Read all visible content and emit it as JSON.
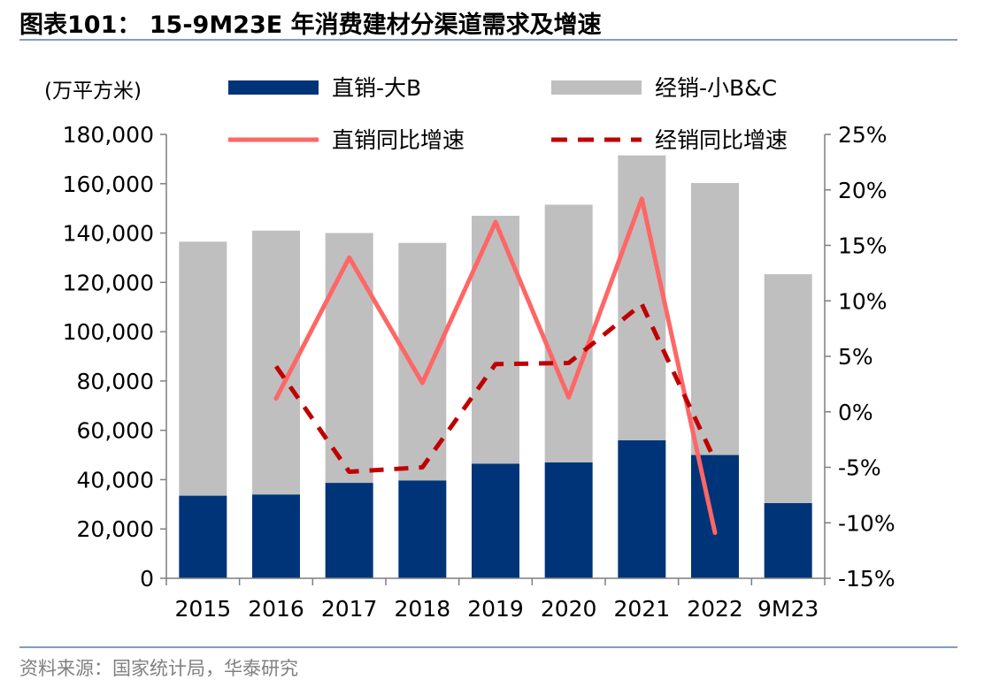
{
  "figure": {
    "title": "图表101： 15-9M23E 年消费建材分渠道需求及增速",
    "source": "资料来源：国家统计局，华泰研究"
  },
  "chart_data": {
    "type": "bar",
    "stacked": true,
    "unit_label": "(万平方米)",
    "categories": [
      "2015",
      "2016",
      "2017",
      "2018",
      "2019",
      "2020",
      "2021",
      "2022",
      "9M23"
    ],
    "series": [
      {
        "name": "直销-大B",
        "kind": "bar",
        "axis": "left",
        "color": "#003478",
        "values": [
          33500,
          34000,
          38700,
          39700,
          46500,
          47000,
          56000,
          50000,
          30500
        ]
      },
      {
        "name": "经销-小B&C",
        "kind": "bar",
        "axis": "left",
        "color": "#bfbfbf",
        "values": [
          103000,
          107000,
          101300,
          96300,
          100500,
          104500,
          115500,
          110300,
          92800
        ]
      },
      {
        "name": "直销同比增速",
        "kind": "line",
        "axis": "right",
        "color": "#ff6666",
        "dash": "solid",
        "values": [
          null,
          1.2,
          13.9,
          2.6,
          17.1,
          1.3,
          19.2,
          -10.9,
          null
        ]
      },
      {
        "name": "经销同比增速",
        "kind": "line",
        "axis": "right",
        "color": "#c00000",
        "dash": "dashed",
        "values": [
          null,
          4.1,
          -5.4,
          -5.0,
          4.3,
          4.4,
          9.7,
          -4.4,
          null
        ]
      }
    ],
    "left_axis": {
      "min": 0,
      "max": 180000,
      "step": 20000,
      "ticks": [
        "0",
        "20,000",
        "40,000",
        "60,000",
        "80,000",
        "100,000",
        "120,000",
        "140,000",
        "160,000",
        "180,000"
      ]
    },
    "right_axis": {
      "min": -15,
      "max": 25,
      "step": 5,
      "ticks": [
        "-15%",
        "-10%",
        "-5%",
        "0%",
        "5%",
        "10%",
        "15%",
        "20%",
        "25%"
      ]
    },
    "legend_position": "top",
    "grid": false
  }
}
